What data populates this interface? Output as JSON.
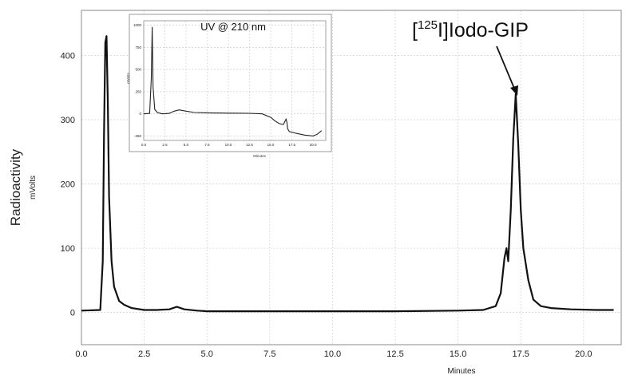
{
  "chart_data": [
    {
      "type": "line",
      "xlabel": "Minutes",
      "ylabel": "Radioactivity",
      "yunit": "mVolts",
      "xlim": [
        0,
        21.5
      ],
      "ylim": [
        -50,
        470
      ],
      "x_ticks": [
        0.0,
        2.5,
        5.0,
        7.5,
        10.0,
        12.5,
        15.0,
        17.5,
        20.0
      ],
      "x_tick_labels": [
        "0.0",
        "2.5",
        "5.0",
        "7.5",
        "10.0",
        "12.5",
        "15.0",
        "17.5",
        "20.0"
      ],
      "y_ticks": [
        0,
        100,
        200,
        300,
        400
      ],
      "y_tick_labels": [
        "0",
        "100",
        "200",
        "300",
        "400"
      ],
      "grid": true,
      "annotation": {
        "prefix": "[",
        "superscript": "125",
        "suffix": "I]Iodo-GIP",
        "target": [
          17.3,
          340
        ]
      },
      "series": [
        {
          "x": [
            0.0,
            0.75,
            0.85,
            0.9,
            0.95,
            1.0,
            1.05,
            1.1,
            1.2,
            1.3,
            1.5,
            1.7,
            2.0,
            2.5,
            3.0,
            3.5,
            3.8,
            4.1,
            4.6,
            5.0,
            7.5,
            10.0,
            12.5,
            15.0,
            16.0,
            16.5,
            16.7,
            16.85,
            16.93,
            17.0,
            17.1,
            17.2,
            17.3,
            17.4,
            17.5,
            17.6,
            17.8,
            18.0,
            18.3,
            18.7,
            19.5,
            20.5,
            21.2
          ],
          "y": [
            3,
            4,
            80,
            280,
            420,
            430,
            330,
            180,
            80,
            40,
            18,
            12,
            7,
            4,
            4,
            5,
            9,
            5,
            3,
            2,
            2,
            2,
            2,
            3,
            4,
            10,
            30,
            85,
            100,
            80,
            160,
            270,
            340,
            260,
            160,
            100,
            50,
            20,
            10,
            7,
            5,
            4,
            4
          ]
        }
      ]
    },
    {
      "type": "line",
      "title": "UV @ 210 nm",
      "xlabel": "Minutes",
      "ylabel": "mVolts",
      "xlim": [
        0,
        21.5
      ],
      "ylim": [
        -300,
        1050
      ],
      "x_ticks": [
        0.0,
        2.5,
        5.0,
        7.5,
        10.0,
        12.5,
        15.0,
        17.5,
        20.0
      ],
      "x_tick_labels": [
        "0.0",
        "2.5",
        "5.0",
        "7.5",
        "10.0",
        "12.5",
        "15.0",
        "17.5",
        "20.0"
      ],
      "y_ticks": [
        -250,
        0,
        250,
        500,
        750,
        1000
      ],
      "y_tick_labels": [
        "-250",
        "0",
        "250",
        "500",
        "750",
        "1000"
      ],
      "grid": true,
      "series": [
        {
          "x": [
            0.0,
            0.7,
            0.9,
            1.0,
            1.1,
            1.3,
            1.6,
            2.2,
            3.0,
            3.6,
            4.2,
            5.0,
            6.0,
            8.0,
            10.0,
            12.5,
            14.0,
            15.0,
            15.5,
            16.0,
            16.5,
            16.8,
            16.9,
            17.0,
            17.2,
            18.0,
            19.0,
            20.0,
            20.5,
            21.0
          ],
          "y": [
            0,
            5,
            400,
            980,
            300,
            50,
            15,
            0,
            5,
            30,
            45,
            30,
            15,
            10,
            8,
            6,
            0,
            -40,
            -80,
            -110,
            -120,
            -60,
            -90,
            -170,
            -200,
            -220,
            -240,
            -250,
            -230,
            -190
          ]
        }
      ]
    }
  ]
}
